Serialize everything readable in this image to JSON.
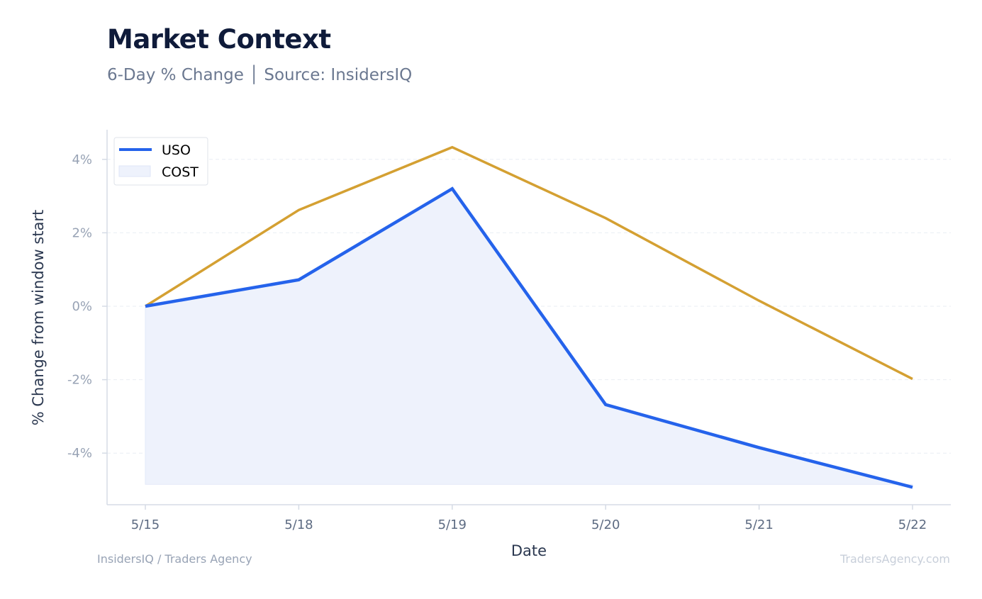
{
  "header": {
    "title": "Market Context",
    "subtitle": "6-Day % Change │ Source: InsidersIQ"
  },
  "footer": {
    "left": "InsidersIQ / Traders Agency",
    "right": "TradersAgency.com"
  },
  "chart_data": {
    "type": "line",
    "title": "Market Context",
    "subtitle": "6-Day % Change │ Source: InsidersIQ",
    "xlabel": "Date",
    "ylabel": "% Change from window start",
    "categories": [
      "5/15",
      "5/18",
      "5/19",
      "5/20",
      "5/21",
      "5/22"
    ],
    "ylim": [
      -5.4,
      4.8
    ],
    "yticks": [
      4,
      2,
      0,
      -2,
      -4
    ],
    "ytick_labels": [
      "4%",
      "2%",
      "0%",
      "-2%",
      "-4%"
    ],
    "grid": "horizontal dashed",
    "legend_position": "top-left",
    "series": [
      {
        "name": "USO",
        "values": [
          0,
          0.72,
          3.2,
          -2.68,
          -3.85,
          -4.93
        ],
        "color": "#2563eb",
        "fill": "#eef2fc",
        "fill_base": -4.85
      },
      {
        "name": "COST",
        "values": [
          0,
          2.62,
          4.33,
          2.4,
          0.15,
          -1.98
        ],
        "color": "#d4a032"
      }
    ],
    "legend": [
      {
        "label": "USO",
        "marker": "line",
        "color": "#2563eb"
      },
      {
        "label": "COST",
        "marker": "patch",
        "color": "#eef2fc"
      }
    ]
  }
}
